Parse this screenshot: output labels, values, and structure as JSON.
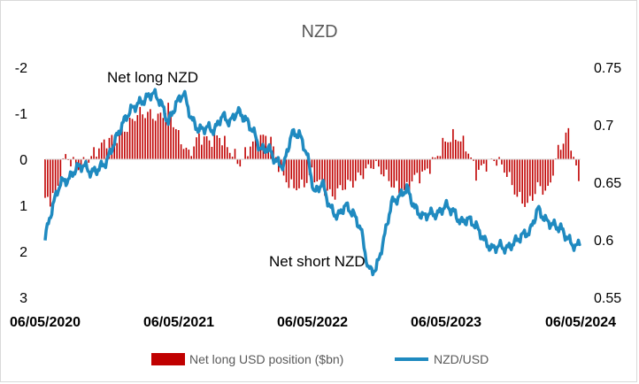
{
  "chart_data": {
    "type": "bar+line",
    "title": "NZD",
    "x_ticks": [
      "06/05/2020",
      "06/05/2021",
      "06/05/2022",
      "06/05/2023",
      "06/05/2024"
    ],
    "left_axis": {
      "range": [
        3,
        -2
      ],
      "inverted": true,
      "ticks": [
        "-2",
        "-1",
        "0",
        "1",
        "2",
        "3"
      ]
    },
    "right_axis": {
      "range": [
        0.55,
        0.75
      ],
      "ticks": [
        "0.75",
        "0.7",
        "0.65",
        "0.6",
        "0.55"
      ]
    },
    "annotations": [
      "Net long NZD",
      "Net short NZD"
    ],
    "grid": false,
    "legend_position": "bottom",
    "series": [
      {
        "name": "Net long USD position ($bn)",
        "type": "bar",
        "axis": "left",
        "color": "#c00000",
        "x": [
          "2020-05-06",
          "2020-06-03",
          "2020-07-01",
          "2020-07-29",
          "2020-08-26",
          "2020-09-23",
          "2020-10-21",
          "2020-11-18",
          "2020-12-16",
          "2021-01-13",
          "2021-02-10",
          "2021-03-10",
          "2021-04-07",
          "2021-05-05",
          "2021-06-02",
          "2021-06-30",
          "2021-07-28",
          "2021-08-25",
          "2021-09-22",
          "2021-10-20",
          "2021-11-17",
          "2021-12-15",
          "2022-01-12",
          "2022-02-09",
          "2022-03-09",
          "2022-04-06",
          "2022-05-04",
          "2022-06-01",
          "2022-06-29",
          "2022-07-27",
          "2022-08-24",
          "2022-09-21",
          "2022-10-19",
          "2022-11-16",
          "2022-12-14",
          "2023-01-11",
          "2023-02-08",
          "2023-03-08",
          "2023-04-05",
          "2023-05-03",
          "2023-05-31",
          "2023-06-28",
          "2023-07-26",
          "2023-08-23",
          "2023-09-20",
          "2023-10-18",
          "2023-11-15",
          "2023-12-13",
          "2024-01-10",
          "2024-02-07",
          "2024-03-06",
          "2024-04-03",
          "2024-05-01"
        ],
        "values": [
          0.9,
          0.8,
          -0.1,
          0.2,
          0.1,
          -0.2,
          -0.4,
          -0.5,
          -0.7,
          -1.0,
          -1.0,
          -0.9,
          -1.1,
          -0.5,
          -0.1,
          -0.5,
          -0.4,
          -0.5,
          -0.2,
          0.1,
          -0.3,
          -0.5,
          -0.4,
          0.3,
          0.6,
          0.6,
          0.3,
          0.6,
          0.8,
          0.6,
          0.5,
          0.3,
          0.1,
          0.3,
          0.6,
          0.7,
          0.4,
          0.3,
          0.0,
          -0.4,
          -0.5,
          -0.3,
          0.3,
          0.1,
          0.0,
          0.3,
          0.8,
          1.0,
          0.6,
          0.7,
          -0.2,
          -0.6,
          0.5
        ]
      },
      {
        "name": "NZD/USD",
        "type": "line",
        "axis": "right",
        "color": "#1f8ac0",
        "x": [
          "2020-05-06",
          "2020-05-27",
          "2020-06-17",
          "2020-07-08",
          "2020-07-29",
          "2020-08-19",
          "2020-09-09",
          "2020-09-30",
          "2020-10-21",
          "2020-11-11",
          "2020-12-02",
          "2020-12-23",
          "2021-01-13",
          "2021-02-03",
          "2021-02-24",
          "2021-03-17",
          "2021-04-07",
          "2021-04-28",
          "2021-05-19",
          "2021-06-09",
          "2021-06-30",
          "2021-07-21",
          "2021-08-11",
          "2021-09-01",
          "2021-09-22",
          "2021-10-13",
          "2021-11-03",
          "2021-11-24",
          "2021-12-15",
          "2022-01-05",
          "2022-01-26",
          "2022-02-16",
          "2022-03-09",
          "2022-03-30",
          "2022-04-20",
          "2022-05-11",
          "2022-06-01",
          "2022-06-22",
          "2022-07-13",
          "2022-08-03",
          "2022-08-24",
          "2022-09-14",
          "2022-10-05",
          "2022-10-26",
          "2022-11-16",
          "2022-12-07",
          "2022-12-28",
          "2023-01-18",
          "2023-02-08",
          "2023-03-01",
          "2023-03-22",
          "2023-04-12",
          "2023-05-03",
          "2023-05-24",
          "2023-06-14",
          "2023-07-05",
          "2023-07-26",
          "2023-08-16",
          "2023-09-06",
          "2023-09-27",
          "2023-10-18",
          "2023-11-08",
          "2023-11-29",
          "2023-12-20",
          "2024-01-10",
          "2024-01-31",
          "2024-02-21",
          "2024-03-13",
          "2024-04-03",
          "2024-04-24",
          "2024-05-06"
        ],
        "values": [
          0.602,
          0.63,
          0.65,
          0.652,
          0.662,
          0.665,
          0.658,
          0.662,
          0.668,
          0.685,
          0.7,
          0.712,
          0.718,
          0.722,
          0.728,
          0.72,
          0.702,
          0.718,
          0.728,
          0.705,
          0.695,
          0.698,
          0.695,
          0.708,
          0.702,
          0.712,
          0.705,
          0.695,
          0.678,
          0.68,
          0.668,
          0.664,
          0.692,
          0.692,
          0.675,
          0.64,
          0.65,
          0.628,
          0.62,
          0.63,
          0.623,
          0.61,
          0.574,
          0.574,
          0.6,
          0.632,
          0.637,
          0.645,
          0.628,
          0.62,
          0.623,
          0.622,
          0.63,
          0.625,
          0.615,
          0.618,
          0.612,
          0.6,
          0.592,
          0.595,
          0.592,
          0.598,
          0.604,
          0.607,
          0.627,
          0.617,
          0.613,
          0.61,
          0.6,
          0.593,
          0.6
        ]
      }
    ]
  }
}
